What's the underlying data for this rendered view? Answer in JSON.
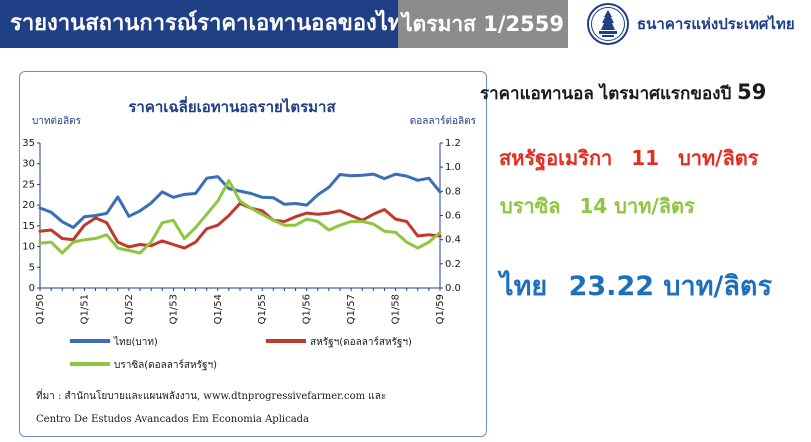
{
  "header": {
    "title": "รายงานสถานการณ์ราคาเอทานอลของไทย",
    "quarter": "ไตรมาส 1/2559",
    "bank_name": "ธนาคารแห่งประเทศไทย"
  },
  "summary": {
    "heading_text": "ราคาแอทานอล ไตรมาศแรกของปี",
    "heading_year": "59",
    "us_label": "สหรัฐอเมริกา",
    "us_value": "11",
    "us_unit": "บาท/ลิตร",
    "br_label": "บราซิล",
    "br_value": "14",
    "br_unit": "บาท/ลิตร",
    "th_label": "ไทย",
    "th_value": "23.22",
    "th_unit": "บาท/ลิตร"
  },
  "colors": {
    "thai": "#3a6fb7",
    "us": "#c0392b",
    "brazil": "#8dc63f",
    "header_blue": "#1f3f86",
    "header_gray": "#8c8c8c"
  },
  "chart_data": {
    "type": "line",
    "title": "ราคาเฉลี่ยเอทานอลรายไตรมาส",
    "ylabel_left": "บาทต่อลิตร",
    "ylabel_right": "ดอลลาร์ต่อลิตร",
    "ylim_left": [
      0,
      35
    ],
    "yticks_left": [
      "0",
      "5",
      "10",
      "15",
      "20",
      "25",
      "30",
      "35"
    ],
    "ylim_right": [
      0,
      1.2
    ],
    "yticks_right": [
      "0.0",
      "0.2",
      "0.4",
      "0.6",
      "0.8",
      "1.0",
      "1.2"
    ],
    "xtick_labels": [
      "Q1/50",
      "Q1/51",
      "Q1/52",
      "Q1/53",
      "Q1/54",
      "Q1/55",
      "Q1/56",
      "Q1/57",
      "Q1/58",
      "Q1/59"
    ],
    "quarters": [
      "Q1/50",
      "Q2/50",
      "Q3/50",
      "Q4/50",
      "Q1/51",
      "Q2/51",
      "Q3/51",
      "Q4/51",
      "Q1/52",
      "Q2/52",
      "Q3/52",
      "Q4/52",
      "Q1/53",
      "Q2/53",
      "Q3/53",
      "Q4/53",
      "Q1/54",
      "Q2/54",
      "Q3/54",
      "Q4/54",
      "Q1/55",
      "Q2/55",
      "Q3/55",
      "Q4/55",
      "Q1/56",
      "Q2/56",
      "Q3/56",
      "Q4/56",
      "Q1/57",
      "Q2/57",
      "Q3/57",
      "Q4/57",
      "Q1/58",
      "Q2/58",
      "Q3/58",
      "Q4/58",
      "Q1/59"
    ],
    "series": [
      {
        "name": "ไทย(บาท)",
        "axis": "left",
        "color": "#3a6fb7",
        "values": [
          19.3,
          18.3,
          16.0,
          14.6,
          17.2,
          17.5,
          18.0,
          22.0,
          17.3,
          18.6,
          20.5,
          23.2,
          21.9,
          22.6,
          22.8,
          26.5,
          26.9,
          24.0,
          23.4,
          22.8,
          21.9,
          21.8,
          20.2,
          20.4,
          20.0,
          22.5,
          24.3,
          27.4,
          27.1,
          27.2,
          27.5,
          26.4,
          27.5,
          27.0,
          26.0,
          26.5,
          23.2
        ]
      },
      {
        "name": "สหรัฐฯ(ดอลลาร์สหรัฐฯ)",
        "axis": "right",
        "color": "#c0392b",
        "values": [
          0.47,
          0.48,
          0.41,
          0.4,
          0.52,
          0.58,
          0.54,
          0.38,
          0.34,
          0.36,
          0.35,
          0.39,
          0.36,
          0.33,
          0.38,
          0.49,
          0.52,
          0.6,
          0.7,
          0.66,
          0.64,
          0.56,
          0.55,
          0.59,
          0.62,
          0.61,
          0.62,
          0.64,
          0.6,
          0.56,
          0.61,
          0.65,
          0.57,
          0.55,
          0.43,
          0.44,
          0.43
        ]
      },
      {
        "name": "บราซิล(ดอลลาร์สหรัฐฯ)",
        "axis": "right",
        "color": "#8dc63f",
        "values": [
          0.37,
          0.38,
          0.29,
          0.38,
          0.4,
          0.41,
          0.44,
          0.33,
          0.31,
          0.29,
          0.38,
          0.54,
          0.56,
          0.41,
          0.5,
          0.61,
          0.72,
          0.89,
          0.72,
          0.66,
          0.61,
          0.56,
          0.52,
          0.52,
          0.57,
          0.55,
          0.48,
          0.52,
          0.55,
          0.55,
          0.53,
          0.47,
          0.46,
          0.38,
          0.33,
          0.38,
          0.46
        ]
      }
    ],
    "legend": [
      {
        "label": "ไทย(บาท)",
        "color": "#3a6fb7"
      },
      {
        "label": "สหรัฐฯ(ดอลลาร์สหรัฐฯ)",
        "color": "#c0392b"
      },
      {
        "label": "บราซิล(ดอลลาร์สหรัฐฯ)",
        "color": "#8dc63f"
      }
    ],
    "source_line1": "ที่มา : สำนักนโยบายและแผนพลังงาน, www.dtnprogressivefarmer.com และ",
    "source_line2": "Centro De Estudos Avancados Em Economia Aplicada",
    "grid": false,
    "legend_position": "bottom"
  }
}
